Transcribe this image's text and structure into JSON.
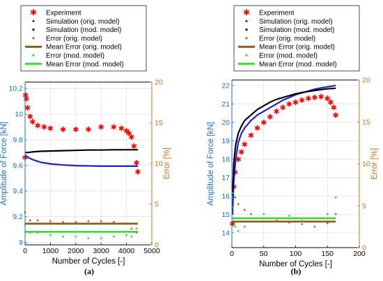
{
  "chart_data": [
    {
      "type": "scatter",
      "panel_label": "(a)",
      "xlabel": "Number of Cycles [-]",
      "ylabel_left": "Amplitude of Force [kN]",
      "ylabel_right": "Error [%]",
      "xlim": [
        0,
        5000
      ],
      "ylim_left": [
        8.98,
        10.25
      ],
      "ylim_right": [
        0,
        20
      ],
      "x_ticks": [
        "0",
        "1000",
        "2000",
        "3000",
        "4000",
        "5000"
      ],
      "y_left_ticks": [
        "9",
        "9.2",
        "9.4",
        "9.6",
        "9.8",
        "10",
        "10.2"
      ],
      "y_right_ticks": [
        "0",
        "5",
        "10",
        "15",
        "20"
      ],
      "legend": [
        "Experiment",
        "Simulation (orig. model)",
        "Simulation (mod. model)",
        "Error (orig. model)",
        "Mean Error (orig. model)",
        "Error (mod. model)",
        "Mean Error (mod. model)"
      ],
      "series": [
        {
          "name": "Experiment",
          "axis": "left",
          "style": "star",
          "color": "#ff0000",
          "x": [
            0,
            20,
            50,
            100,
            200,
            300,
            500,
            750,
            1000,
            1500,
            2000,
            2500,
            3000,
            3500,
            3800,
            4000,
            4100,
            4200,
            4300,
            4400,
            4450
          ],
          "y": [
            9.66,
            10.15,
            10.12,
            10.05,
            9.98,
            9.94,
            9.91,
            9.9,
            9.89,
            9.88,
            9.88,
            9.88,
            9.9,
            9.9,
            9.89,
            9.87,
            9.85,
            9.82,
            9.75,
            9.62,
            9.55
          ]
        },
        {
          "name": "Simulation (orig. model)",
          "axis": "left",
          "style": "line",
          "color": "#1a22c8",
          "x": [
            0,
            100,
            300,
            600,
            1000,
            1500,
            2000,
            2500,
            3000,
            3500,
            4000,
            4450
          ],
          "y": [
            9.68,
            9.665,
            9.645,
            9.625,
            9.612,
            9.603,
            9.598,
            9.596,
            9.594,
            9.594,
            9.594,
            9.594
          ]
        },
        {
          "name": "Simulation (mod. model)",
          "axis": "left",
          "style": "line",
          "color": "#000000",
          "x": [
            0,
            100,
            300,
            600,
            1000,
            1500,
            2000,
            2500,
            3000,
            3500,
            4000,
            4450
          ],
          "y": [
            9.7,
            9.7,
            9.705,
            9.71,
            9.712,
            9.715,
            9.717,
            9.72,
            9.72,
            9.722,
            9.722,
            9.722
          ]
        },
        {
          "name": "Error (orig. model)",
          "axis": "right",
          "style": "dots",
          "color": "#b5651d",
          "x": [
            0,
            200,
            500,
            1000,
            1500,
            2000,
            2500,
            3000,
            3500,
            4000,
            4200,
            4400
          ],
          "y": [
            4.0,
            3.0,
            3.0,
            2.9,
            2.8,
            2.8,
            2.9,
            2.9,
            2.8,
            2.6,
            2.0,
            1.5
          ]
        },
        {
          "name": "Mean Error (orig. model)",
          "axis": "right",
          "style": "line",
          "color": "#8b5a1b",
          "x": [
            0,
            4450
          ],
          "y": [
            2.6,
            2.6
          ]
        },
        {
          "name": "Error (mod. model)",
          "axis": "right",
          "style": "dots",
          "color": "#33dd33",
          "x": [
            0,
            200,
            500,
            1000,
            1500,
            2000,
            2500,
            3000,
            3500,
            4000,
            4200,
            4400
          ],
          "y": [
            2.5,
            1.5,
            1.5,
            1.2,
            1.0,
            1.0,
            0.8,
            0.8,
            1.0,
            1.2,
            1.0,
            2.0
          ]
        },
        {
          "name": "Mean Error (mod. model)",
          "axis": "right",
          "style": "line",
          "color": "#33dd33",
          "x": [
            0,
            4450
          ],
          "y": [
            1.6,
            1.6
          ]
        }
      ]
    },
    {
      "type": "scatter",
      "panel_label": "(b)",
      "xlabel": "Number of Cycles [-]",
      "ylabel_left": "Amplitude of Force [kN]",
      "ylabel_right": "Error [%]",
      "xlim": [
        0,
        200
      ],
      "ylim_left": [
        13.2,
        22.3
      ],
      "ylim_right": [
        0,
        20
      ],
      "x_ticks": [
        "0",
        "50",
        "100",
        "150",
        "200"
      ],
      "y_left_ticks": [
        "14",
        "15",
        "16",
        "17",
        "18",
        "19",
        "20",
        "21",
        "22"
      ],
      "y_right_ticks": [
        "0",
        "5",
        "10",
        "15",
        "20"
      ],
      "legend": [
        "Experiment",
        "Simulation (orig. model)",
        "Simulation (mod. model)",
        "Error (orig. model)",
        "Mean Error (orig. model)",
        "Error (mod. model)",
        "Mean Error (mod. model)"
      ],
      "series": [
        {
          "name": "Experiment",
          "axis": "left",
          "style": "star",
          "color": "#ff0000",
          "x": [
            1,
            3,
            5,
            10,
            15,
            20,
            30,
            40,
            50,
            60,
            70,
            80,
            90,
            100,
            110,
            120,
            130,
            140,
            150,
            155,
            160,
            163
          ],
          "y": [
            14.5,
            16.5,
            17.3,
            18.0,
            18.4,
            18.8,
            19.3,
            19.7,
            20.0,
            20.3,
            20.6,
            20.8,
            21.0,
            21.1,
            21.2,
            21.3,
            21.35,
            21.4,
            21.3,
            21.1,
            20.8,
            20.4
          ]
        },
        {
          "name": "Simulation (orig. model)",
          "axis": "left",
          "style": "line",
          "color": "#1a22c8",
          "x": [
            1,
            3,
            6,
            10,
            15,
            20,
            30,
            40,
            50,
            60,
            70,
            80,
            90,
            100,
            110,
            120,
            130,
            140,
            150,
            163
          ],
          "y": [
            15.0,
            16.8,
            18.0,
            18.9,
            19.4,
            19.7,
            20.1,
            20.4,
            20.6,
            20.8,
            21.0,
            21.2,
            21.35,
            21.5,
            21.6,
            21.7,
            21.8,
            21.87,
            21.93,
            22.0
          ]
        },
        {
          "name": "Simulation (mod. model)",
          "axis": "left",
          "style": "line",
          "color": "#000000",
          "x": [
            1,
            3,
            6,
            10,
            15,
            20,
            30,
            40,
            50,
            60,
            70,
            80,
            90,
            100,
            110,
            120,
            130,
            140,
            150,
            163
          ],
          "y": [
            16.0,
            17.8,
            18.8,
            19.4,
            19.8,
            20.1,
            20.4,
            20.7,
            20.9,
            21.1,
            21.25,
            21.35,
            21.45,
            21.55,
            21.62,
            21.68,
            21.73,
            21.78,
            21.82,
            21.85
          ]
        },
        {
          "name": "Error (orig. model)",
          "axis": "right",
          "style": "dots",
          "color": "#b5651d",
          "x": [
            1,
            5,
            10,
            20,
            30,
            50,
            70,
            90,
            110,
            130,
            150,
            163
          ],
          "y": [
            4.8,
            6.0,
            5.2,
            4.5,
            4.0,
            3.5,
            3.2,
            3.0,
            2.8,
            2.5,
            2.9,
            4.0
          ]
        },
        {
          "name": "Mean Error (orig. model)",
          "axis": "right",
          "style": "line",
          "color": "#8b5a1b",
          "x": [
            0,
            163
          ],
          "y": [
            3.1,
            3.1
          ]
        },
        {
          "name": "Error (mod. model)",
          "axis": "right",
          "style": "dots",
          "color": "#33dd33",
          "x": [
            1,
            5,
            10,
            20,
            30,
            50,
            70,
            90,
            110,
            130,
            150,
            163
          ],
          "y": [
            6.5,
            2.5,
            2.0,
            2.5,
            3.5,
            4.0,
            3.5,
            3.8,
            3.2,
            3.5,
            4.0,
            6.0
          ]
        },
        {
          "name": "Mean Error (mod. model)",
          "axis": "right",
          "style": "line",
          "color": "#33dd33",
          "x": [
            0,
            163
          ],
          "y": [
            3.5,
            3.5
          ]
        }
      ]
    }
  ]
}
